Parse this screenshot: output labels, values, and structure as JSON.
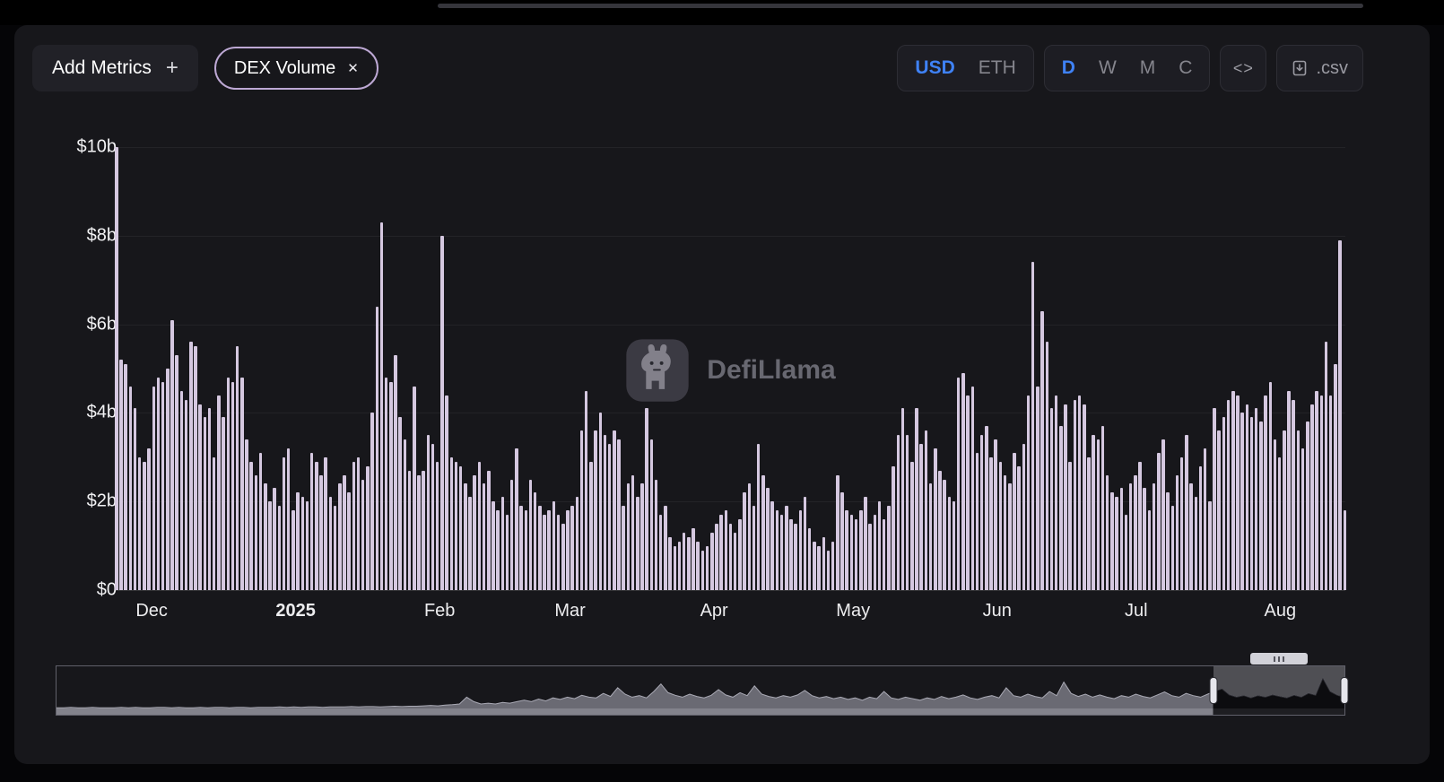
{
  "toolbar": {
    "add_metrics_label": "Add Metrics",
    "metric_pill": "DEX Volume",
    "currency_options": [
      "USD",
      "ETH"
    ],
    "currency_selected": "USD",
    "interval_options": [
      "D",
      "W",
      "M",
      "C"
    ],
    "interval_selected": "D",
    "csv_label": ".csv"
  },
  "icons": {
    "plus": "+",
    "close": "✕",
    "embed": "<>",
    "download": "download-icon",
    "logo": "defillama-llama-icon"
  },
  "watermark": {
    "text": "DefiLlama"
  },
  "colors": {
    "bar": "#d5c8e0",
    "accent_blue": "#3f82f6",
    "pill_border": "#bda8d4",
    "panel_bg": "#17171b",
    "text_gray": "#85858d"
  },
  "chart_data": {
    "type": "bar",
    "title": "DEX Volume",
    "currency": "USD",
    "interval": "D",
    "ylim": [
      0,
      10
    ],
    "y_unit": "$ billions USD",
    "y_ticks": [
      "$10b",
      "$8b",
      "$6b",
      "$4b",
      "$2b",
      "$0"
    ],
    "x_ticks": [
      {
        "label": "Dec",
        "pos": 0.03
      },
      {
        "label": "2025",
        "pos": 0.147,
        "bold": true
      },
      {
        "label": "Feb",
        "pos": 0.264
      },
      {
        "label": "Mar",
        "pos": 0.37
      },
      {
        "label": "Apr",
        "pos": 0.487
      },
      {
        "label": "May",
        "pos": 0.6
      },
      {
        "label": "Jun",
        "pos": 0.717
      },
      {
        "label": "Jul",
        "pos": 0.83
      },
      {
        "label": "Aug",
        "pos": 0.947
      }
    ],
    "values": [
      10.0,
      5.2,
      5.1,
      4.6,
      4.1,
      3.0,
      2.9,
      3.2,
      4.6,
      4.8,
      4.7,
      5.0,
      6.1,
      5.3,
      4.5,
      4.3,
      5.6,
      5.5,
      4.2,
      3.9,
      4.1,
      3.0,
      4.4,
      3.9,
      4.8,
      4.7,
      5.5,
      4.8,
      3.4,
      2.9,
      2.6,
      3.1,
      2.4,
      2.0,
      2.3,
      1.9,
      3.0,
      3.2,
      1.8,
      2.2,
      2.1,
      2.0,
      3.1,
      2.9,
      2.6,
      3.0,
      2.1,
      1.9,
      2.4,
      2.6,
      2.2,
      2.9,
      3.0,
      2.5,
      2.8,
      4.0,
      6.4,
      8.3,
      4.8,
      4.7,
      5.3,
      3.9,
      3.4,
      2.7,
      4.6,
      2.6,
      2.7,
      3.5,
      3.3,
      2.9,
      8.0,
      4.4,
      3.0,
      2.9,
      2.8,
      2.4,
      2.1,
      2.6,
      2.9,
      2.4,
      2.7,
      2.0,
      1.8,
      2.1,
      1.7,
      2.5,
      3.2,
      1.9,
      1.8,
      2.5,
      2.2,
      1.9,
      1.7,
      1.8,
      2.0,
      1.7,
      1.5,
      1.8,
      1.9,
      2.1,
      3.6,
      4.5,
      2.9,
      3.6,
      4.0,
      3.5,
      3.3,
      3.6,
      3.4,
      1.9,
      2.4,
      2.6,
      2.1,
      2.4,
      4.1,
      3.4,
      2.5,
      1.7,
      1.9,
      1.2,
      1.0,
      1.1,
      1.3,
      1.2,
      1.4,
      1.1,
      0.9,
      1.0,
      1.3,
      1.5,
      1.7,
      1.8,
      1.5,
      1.3,
      1.6,
      2.2,
      2.4,
      1.9,
      3.3,
      2.6,
      2.3,
      2.0,
      1.8,
      1.7,
      1.9,
      1.6,
      1.5,
      1.8,
      2.1,
      1.4,
      1.1,
      1.0,
      1.2,
      0.9,
      1.1,
      2.6,
      2.2,
      1.8,
      1.7,
      1.6,
      1.8,
      2.1,
      1.5,
      1.7,
      2.0,
      1.6,
      1.9,
      2.8,
      3.5,
      4.1,
      3.5,
      2.9,
      4.1,
      3.3,
      3.6,
      2.4,
      3.2,
      2.7,
      2.5,
      2.1,
      2.0,
      4.8,
      4.9,
      4.4,
      4.6,
      3.1,
      3.5,
      3.7,
      3.0,
      3.4,
      2.9,
      2.6,
      2.4,
      3.1,
      2.8,
      3.3,
      4.4,
      7.4,
      4.6,
      6.3,
      5.6,
      4.1,
      4.4,
      3.7,
      4.2,
      2.9,
      4.3,
      4.4,
      4.2,
      3.0,
      3.5,
      3.4,
      3.7,
      2.6,
      2.2,
      2.1,
      2.3,
      1.7,
      2.4,
      2.6,
      2.9,
      2.3,
      1.8,
      2.4,
      3.1,
      3.4,
      2.2,
      1.9,
      2.6,
      3.0,
      3.5,
      2.4,
      2.1,
      2.8,
      3.2,
      2.0,
      4.1,
      3.6,
      3.9,
      4.3,
      4.5,
      4.4,
      4.0,
      4.2,
      3.9,
      4.1,
      3.8,
      4.4,
      4.7,
      3.4,
      3.0,
      3.6,
      4.5,
      4.3,
      3.6,
      3.2,
      3.8,
      4.2,
      4.5,
      4.4,
      5.6,
      4.4,
      5.1,
      7.9,
      1.8
    ]
  },
  "brush": {
    "selection_pct": [
      89.8,
      100
    ],
    "profile": [
      0.02,
      0.02,
      0.03,
      0.02,
      0.02,
      0.03,
      0.02,
      0.02,
      0.02,
      0.03,
      0.02,
      0.03,
      0.02,
      0.02,
      0.03,
      0.03,
      0.02,
      0.03,
      0.02,
      0.02,
      0.03,
      0.02,
      0.03,
      0.03,
      0.02,
      0.03,
      0.03,
      0.02,
      0.03,
      0.03,
      0.03,
      0.04,
      0.03,
      0.04,
      0.03,
      0.04,
      0.04,
      0.03,
      0.04,
      0.04,
      0.04,
      0.05,
      0.04,
      0.05,
      0.05,
      0.04,
      0.05,
      0.06,
      0.05,
      0.06,
      0.06,
      0.07,
      0.08,
      0.07,
      0.09,
      0.1,
      0.12,
      0.3,
      0.18,
      0.12,
      0.14,
      0.12,
      0.16,
      0.14,
      0.18,
      0.22,
      0.18,
      0.25,
      0.2,
      0.28,
      0.24,
      0.3,
      0.26,
      0.35,
      0.3,
      0.28,
      0.4,
      0.32,
      0.55,
      0.38,
      0.3,
      0.34,
      0.28,
      0.45,
      0.65,
      0.42,
      0.35,
      0.3,
      0.38,
      0.32,
      0.28,
      0.35,
      0.5,
      0.36,
      0.3,
      0.42,
      0.34,
      0.6,
      0.38,
      0.32,
      0.28,
      0.34,
      0.3,
      0.36,
      0.48,
      0.34,
      0.28,
      0.32,
      0.26,
      0.3,
      0.24,
      0.28,
      0.22,
      0.3,
      0.26,
      0.45,
      0.28,
      0.24,
      0.3,
      0.26,
      0.22,
      0.28,
      0.24,
      0.32,
      0.26,
      0.3,
      0.36,
      0.28,
      0.24,
      0.3,
      0.34,
      0.28,
      0.55,
      0.34,
      0.3,
      0.38,
      0.32,
      0.28,
      0.45,
      0.34,
      0.7,
      0.4,
      0.32,
      0.38,
      0.3,
      0.36,
      0.3,
      0.26,
      0.34,
      0.3,
      0.38,
      0.32,
      0.28,
      0.36,
      0.44,
      0.34,
      0.3,
      0.4,
      0.34,
      0.3,
      0.38,
      0.46,
      0.52,
      0.36,
      0.3,
      0.34,
      0.28,
      0.34,
      0.3,
      0.36,
      0.32,
      0.28,
      0.35,
      0.3,
      0.4,
      0.35,
      0.8,
      0.45,
      0.35,
      0.3
    ]
  }
}
